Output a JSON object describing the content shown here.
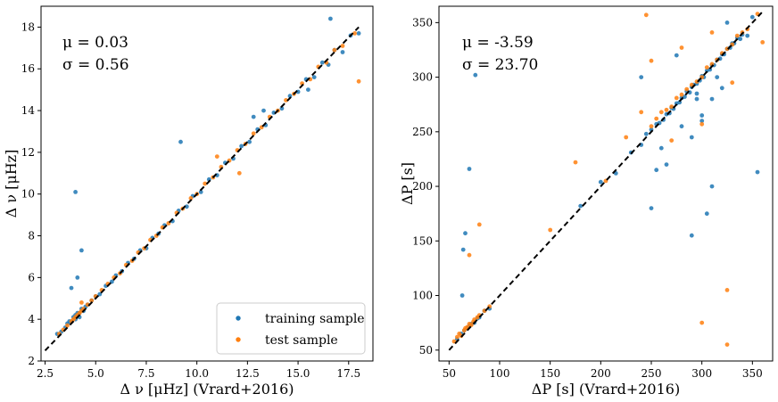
{
  "colors": {
    "training": "#1f77b4",
    "test": "#ff7f0e",
    "identity_line": "#000000"
  },
  "chart_data": [
    {
      "type": "scatter",
      "xlabel": "Δ ν [μHz] (Vrard+2016)",
      "ylabel": "Δ ν [μHz]",
      "xlim": [
        2.3,
        18.7
      ],
      "ylim": [
        2.0,
        19.0
      ],
      "xticks": [
        2.5,
        5.0,
        7.5,
        10.0,
        12.5,
        15.0,
        17.5
      ],
      "xtick_labels": [
        "2.5",
        "5.0",
        "7.5",
        "10.0",
        "12.5",
        "15.0",
        "17.5"
      ],
      "yticks": [
        2,
        4,
        6,
        8,
        10,
        12,
        14,
        16,
        18
      ],
      "ytick_labels": [
        "2",
        "4",
        "6",
        "8",
        "10",
        "12",
        "14",
        "16",
        "18"
      ],
      "stats": {
        "mu": "μ = 0.03",
        "sigma": "σ = 0.56"
      },
      "legend": {
        "position": "lower-right",
        "entries": [
          "training sample",
          "test sample"
        ]
      },
      "identity_line": [
        2.5,
        18.0
      ],
      "series": [
        {
          "name": "training sample",
          "x": [
            3.1,
            3.3,
            3.5,
            3.6,
            3.7,
            3.8,
            3.9,
            4.0,
            4.0,
            4.1,
            4.2,
            4.2,
            4.3,
            4.4,
            4.5,
            4.6,
            4.8,
            5.0,
            5.2,
            5.5,
            5.8,
            6.0,
            6.3,
            6.6,
            6.9,
            7.2,
            7.5,
            7.8,
            8.1,
            8.4,
            8.8,
            9.1,
            9.5,
            9.8,
            10.2,
            10.6,
            11.0,
            11.4,
            11.8,
            12.2,
            12.6,
            13.0,
            13.4,
            13.8,
            14.2,
            14.6,
            15.0,
            15.4,
            15.8,
            16.2,
            16.5,
            16.8,
            17.2,
            17.6,
            18.0,
            4.0,
            4.3,
            4.1,
            3.8,
            9.2,
            16.6,
            13.3,
            12.8,
            15.5
          ],
          "y": [
            3.3,
            3.4,
            3.6,
            3.8,
            3.9,
            3.9,
            4.1,
            4.2,
            4.0,
            4.3,
            4.3,
            4.1,
            4.5,
            4.4,
            4.6,
            4.7,
            4.9,
            5.1,
            5.2,
            5.6,
            5.8,
            6.1,
            6.3,
            6.7,
            6.9,
            7.3,
            7.4,
            7.9,
            8.1,
            8.5,
            8.7,
            9.2,
            9.4,
            9.9,
            10.1,
            10.7,
            10.9,
            11.5,
            11.7,
            12.3,
            12.5,
            13.1,
            13.3,
            13.9,
            14.1,
            14.7,
            14.9,
            15.5,
            15.6,
            16.3,
            16.2,
            16.9,
            16.8,
            17.6,
            17.7,
            10.1,
            7.3,
            6.0,
            5.5,
            12.5,
            18.4,
            14.0,
            13.7,
            15.0
          ]
        },
        {
          "name": "test sample",
          "x": [
            3.2,
            3.4,
            3.6,
            3.8,
            3.9,
            4.0,
            4.1,
            4.2,
            4.3,
            4.4,
            4.6,
            4.8,
            5.0,
            5.3,
            5.6,
            5.9,
            6.2,
            6.5,
            6.8,
            7.1,
            7.4,
            7.7,
            8.0,
            8.3,
            8.6,
            9.0,
            9.3,
            9.7,
            10.0,
            10.4,
            10.8,
            11.2,
            11.6,
            12.0,
            12.4,
            12.8,
            13.2,
            13.6,
            14.0,
            14.4,
            14.8,
            15.2,
            15.6,
            16.0,
            16.4,
            16.8,
            17.2,
            17.8,
            18.0,
            4.3,
            12.1,
            11.0
          ],
          "y": [
            3.3,
            3.5,
            3.7,
            3.9,
            4.0,
            4.1,
            4.2,
            4.3,
            4.4,
            4.5,
            4.7,
            4.9,
            5.1,
            5.4,
            5.7,
            6.0,
            6.2,
            6.6,
            6.8,
            7.2,
            7.4,
            7.8,
            8.0,
            8.4,
            8.6,
            9.1,
            9.3,
            9.8,
            10.0,
            10.5,
            10.8,
            11.3,
            11.6,
            12.1,
            12.4,
            12.9,
            13.2,
            13.7,
            14.0,
            14.5,
            14.8,
            15.3,
            15.5,
            16.1,
            16.3,
            16.9,
            17.1,
            17.7,
            15.4,
            4.8,
            11.0,
            11.8
          ]
        }
      ]
    },
    {
      "type": "scatter",
      "xlabel": "ΔP [s] (Vrard+2016)",
      "ylabel": "ΔP [s]",
      "xlim": [
        40,
        370
      ],
      "ylim": [
        40,
        365
      ],
      "xticks": [
        50,
        100,
        150,
        200,
        250,
        300,
        350
      ],
      "xtick_labels": [
        "50",
        "100",
        "150",
        "200",
        "250",
        "300",
        "350"
      ],
      "yticks": [
        50,
        100,
        150,
        200,
        250,
        300,
        350
      ],
      "ytick_labels": [
        "50",
        "100",
        "150",
        "200",
        "250",
        "300",
        "350"
      ],
      "stats": {
        "mu": "μ = -3.59",
        "sigma": "σ = 23.70"
      },
      "identity_line": [
        50,
        360
      ],
      "series": [
        {
          "name": "training sample",
          "x": [
            58,
            62,
            65,
            68,
            70,
            72,
            75,
            78,
            80,
            85,
            90,
            63,
            66,
            64,
            70,
            76,
            180,
            200,
            215,
            230,
            240,
            245,
            250,
            255,
            258,
            262,
            265,
            268,
            270,
            272,
            275,
            278,
            280,
            283,
            285,
            288,
            290,
            292,
            295,
            298,
            300,
            302,
            305,
            308,
            310,
            312,
            315,
            318,
            320,
            322,
            325,
            328,
            330,
            332,
            335,
            338,
            340,
            345,
            350,
            355,
            255,
            260,
            290,
            300,
            310,
            290,
            250,
            265,
            280,
            300,
            320,
            330,
            240,
            275,
            295,
            315,
            325,
            310,
            295,
            305
          ],
          "y": [
            60,
            65,
            68,
            70,
            72,
            74,
            75,
            79,
            80,
            86,
            88,
            100,
            157,
            142,
            216,
            302,
            182,
            204,
            212,
            231,
            238,
            248,
            252,
            257,
            258,
            261,
            266,
            267,
            272,
            271,
            276,
            277,
            281,
            282,
            287,
            286,
            291,
            293,
            294,
            297,
            301,
            300,
            306,
            307,
            311,
            311,
            316,
            317,
            321,
            321,
            326,
            327,
            331,
            331,
            336,
            335,
            339,
            338,
            355,
            213,
            215,
            235,
            245,
            260,
            280,
            155,
            180,
            220,
            255,
            265,
            290,
            330,
            300,
            320,
            285,
            300,
            350,
            200,
            280,
            175
          ]
        },
        {
          "name": "test sample",
          "x": [
            55,
            58,
            60,
            62,
            65,
            66,
            68,
            70,
            72,
            74,
            75,
            78,
            80,
            85,
            90,
            70,
            80,
            150,
            175,
            205,
            225,
            240,
            250,
            255,
            260,
            265,
            270,
            275,
            280,
            285,
            290,
            295,
            300,
            305,
            310,
            315,
            320,
            325,
            330,
            335,
            340,
            345,
            355,
            360,
            245,
            270,
            300,
            325,
            250,
            280,
            310,
            330,
            300,
            325
          ],
          "y": [
            58,
            62,
            65,
            63,
            68,
            70,
            71,
            74,
            73,
            76,
            78,
            80,
            82,
            86,
            90,
            137,
            165,
            160,
            222,
            205,
            245,
            268,
            255,
            262,
            268,
            270,
            273,
            281,
            284,
            289,
            293,
            296,
            300,
            309,
            312,
            316,
            322,
            326,
            330,
            338,
            341,
            344,
            358,
            332,
            357,
            242,
            257,
            105,
            315,
            327,
            341,
            295,
            75,
            55
          ]
        }
      ]
    }
  ]
}
